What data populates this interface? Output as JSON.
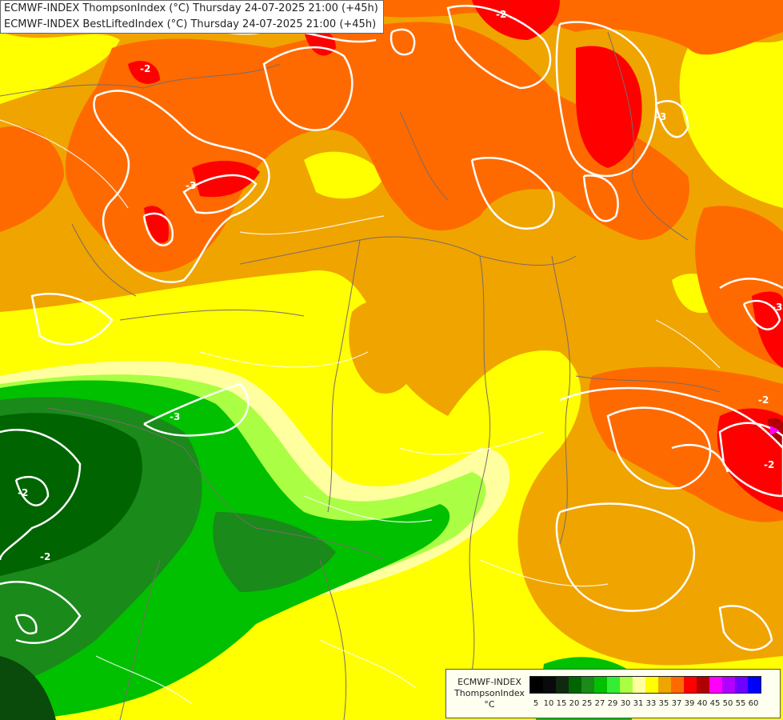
{
  "header": {
    "line1": "ECMWF-INDEX ThompsonIndex (°C) Thursday 24-07-2025 21:00 (+45h)",
    "line2": "ECMWF-INDEX BestLiftedIndex (°C) Thursday 24-07-2025 21:00 (+45h)"
  },
  "legend": {
    "model": "ECMWF-INDEX",
    "index": "ThompsonIndex",
    "unit": "°C",
    "ticks": [
      "5",
      "10",
      "15",
      "20",
      "25",
      "27",
      "29",
      "30",
      "31",
      "33",
      "35",
      "37",
      "39",
      "40",
      "45",
      "50",
      "55",
      "60"
    ],
    "colors": [
      "#000000",
      "#0a0a0a",
      "#0f2a0f",
      "#006400",
      "#1a8a1a",
      "#00c000",
      "#33ee33",
      "#aaff44",
      "#ffffa0",
      "#ffff00",
      "#f0a400",
      "#ff6a00",
      "#ff0000",
      "#b00000",
      "#ff00ff",
      "#b000ff",
      "#7000ff",
      "#0000ff"
    ]
  },
  "contour_labels": [
    "-2",
    "-3",
    "-2",
    "-3",
    "-3",
    "-2",
    "-2",
    "-3",
    "-2",
    "-2"
  ],
  "palette": {
    "orange": "#f0a400",
    "dark_orange": "#ff6a00",
    "red": "#ff0000",
    "yellow": "#ffff00",
    "pale_yellow": "#ffffa0",
    "light_green": "#aaff44",
    "green": "#00c000",
    "mid_green": "#1a8a1a",
    "dark_green": "#006400",
    "darkest_green": "#0a4a0a"
  }
}
